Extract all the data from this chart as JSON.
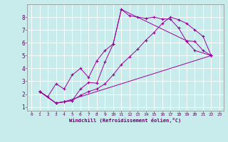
{
  "xlabel": "Windchill (Refroidissement éolien,°C)",
  "background_color": "#c8ecec",
  "line_color": "#990099",
  "xlim": [
    -0.5,
    23.5
  ],
  "ylim": [
    0.7,
    9.0
  ],
  "xticks": [
    0,
    1,
    2,
    3,
    4,
    5,
    6,
    7,
    8,
    9,
    10,
    11,
    12,
    13,
    14,
    15,
    16,
    17,
    18,
    19,
    20,
    21,
    22,
    23
  ],
  "yticks": [
    1,
    2,
    3,
    4,
    5,
    6,
    7,
    8
  ],
  "lines": [
    [
      [
        1,
        2.2
      ],
      [
        2,
        1.8
      ],
      [
        3,
        2.8
      ],
      [
        4,
        2.4
      ],
      [
        5,
        3.5
      ],
      [
        6,
        4.0
      ],
      [
        7,
        3.3
      ],
      [
        8,
        4.6
      ],
      [
        9,
        5.4
      ],
      [
        10,
        5.9
      ],
      [
        11,
        8.6
      ],
      [
        12,
        8.1
      ],
      [
        13,
        8.0
      ],
      [
        14,
        7.9
      ],
      [
        15,
        8.0
      ],
      [
        16,
        7.85
      ],
      [
        17,
        7.85
      ],
      [
        18,
        7.15
      ],
      [
        19,
        6.1
      ],
      [
        20,
        5.4
      ],
      [
        22,
        5.0
      ]
    ],
    [
      [
        1,
        2.2
      ],
      [
        3,
        1.3
      ],
      [
        4,
        1.4
      ],
      [
        5,
        1.5
      ],
      [
        6,
        2.4
      ],
      [
        7,
        2.9
      ],
      [
        8,
        2.85
      ],
      [
        9,
        4.5
      ],
      [
        10,
        5.9
      ],
      [
        11,
        8.6
      ],
      [
        19,
        6.15
      ],
      [
        20,
        6.1
      ],
      [
        21,
        5.4
      ],
      [
        22,
        5.0
      ]
    ],
    [
      [
        1,
        2.2
      ],
      [
        3,
        1.3
      ],
      [
        4,
        1.4
      ],
      [
        5,
        1.5
      ],
      [
        6,
        1.9
      ],
      [
        7,
        2.2
      ],
      [
        8,
        2.4
      ],
      [
        9,
        2.8
      ],
      [
        10,
        3.5
      ],
      [
        11,
        4.3
      ],
      [
        12,
        4.9
      ],
      [
        13,
        5.5
      ],
      [
        14,
        6.2
      ],
      [
        15,
        6.8
      ],
      [
        16,
        7.5
      ],
      [
        17,
        8.0
      ],
      [
        18,
        7.8
      ],
      [
        19,
        7.5
      ],
      [
        20,
        7.0
      ],
      [
        21,
        6.5
      ],
      [
        22,
        5.0
      ]
    ],
    [
      [
        1,
        2.2
      ],
      [
        3,
        1.3
      ],
      [
        4,
        1.4
      ],
      [
        22,
        5.0
      ]
    ]
  ]
}
